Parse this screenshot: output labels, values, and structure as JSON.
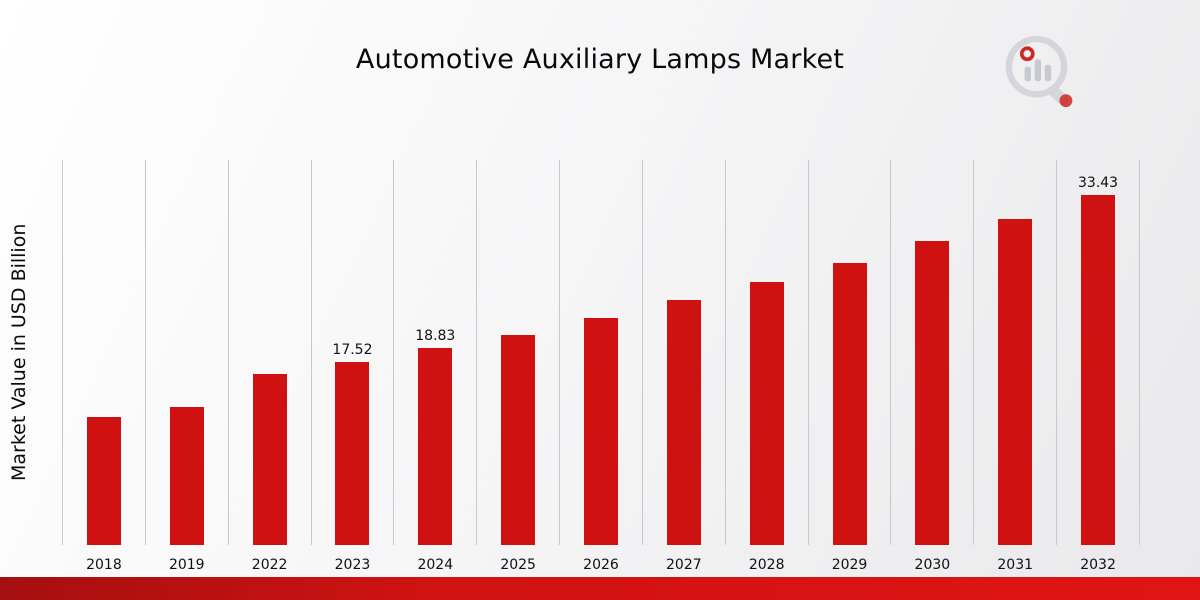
{
  "title": "Automotive Auxiliary Lamps Market",
  "y_axis": {
    "label": "Market Value in USD Billion"
  },
  "chart_data": {
    "type": "bar",
    "title": "Automotive Auxiliary Lamps Market",
    "xlabel": "",
    "ylabel": "Market Value in USD Billion",
    "categories": [
      "2018",
      "2019",
      "2022",
      "2023",
      "2024",
      "2025",
      "2026",
      "2027",
      "2028",
      "2029",
      "2030",
      "2031",
      "2032"
    ],
    "values": [
      12.2,
      13.2,
      16.3,
      17.52,
      18.83,
      20.1,
      21.7,
      23.4,
      25.1,
      27.0,
      29.1,
      31.2,
      33.43
    ],
    "annotated_values": {
      "2023": "17.52",
      "2024": "18.83",
      "2032": "33.43"
    },
    "bar_color": "#d01111",
    "grid": "vertical-only",
    "gridline_color": "#c9c9c9",
    "legend": "none",
    "ylim": [
      0,
      36.8
    ]
  },
  "branding": {
    "accent_color": "#cc1111",
    "logo_gray": "#c9ccd3"
  }
}
